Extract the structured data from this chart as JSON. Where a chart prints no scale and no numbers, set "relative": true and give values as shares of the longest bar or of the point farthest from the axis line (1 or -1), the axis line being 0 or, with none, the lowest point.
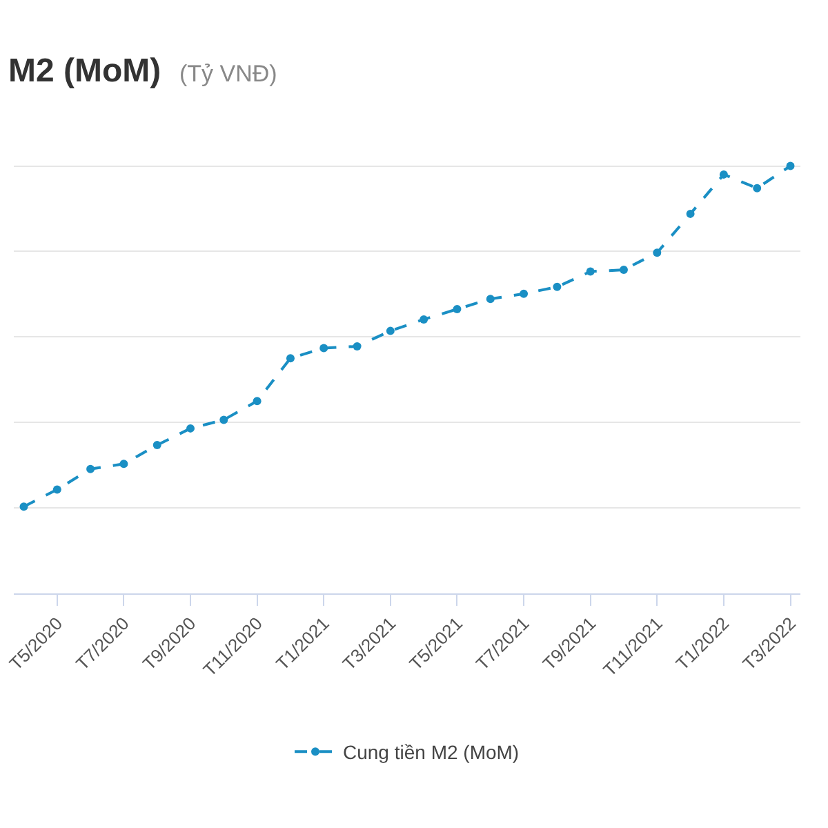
{
  "chart_data": {
    "type": "line",
    "title": "M2 (MoM)",
    "subtitle": "(Tỷ VNĐ)",
    "relative": true,
    "categories": [
      null,
      "T5/2020",
      null,
      "T7/2020",
      null,
      "T9/2020",
      null,
      "T11/2020",
      null,
      "T1/2021",
      null,
      "T3/2021",
      null,
      "T5/2021",
      null,
      "T7/2021",
      null,
      "T9/2021",
      null,
      "T11/2021",
      null,
      "T1/2022",
      null,
      "T3/2022"
    ],
    "series": [
      {
        "name": "Cung tiền M2 (MoM)",
        "color": "#1a8fc4",
        "values": [
          0.203,
          0.243,
          0.291,
          0.303,
          0.347,
          0.386,
          0.406,
          0.45,
          0.55,
          0.574,
          0.578,
          0.614,
          0.641,
          0.665,
          0.689,
          0.701,
          0.717,
          0.753,
          0.757,
          0.797,
          0.888,
          0.98,
          0.948,
          1
        ]
      }
    ],
    "grid": "y",
    "legend": "bottom",
    "marker": "circle",
    "line_style": "dashed"
  }
}
